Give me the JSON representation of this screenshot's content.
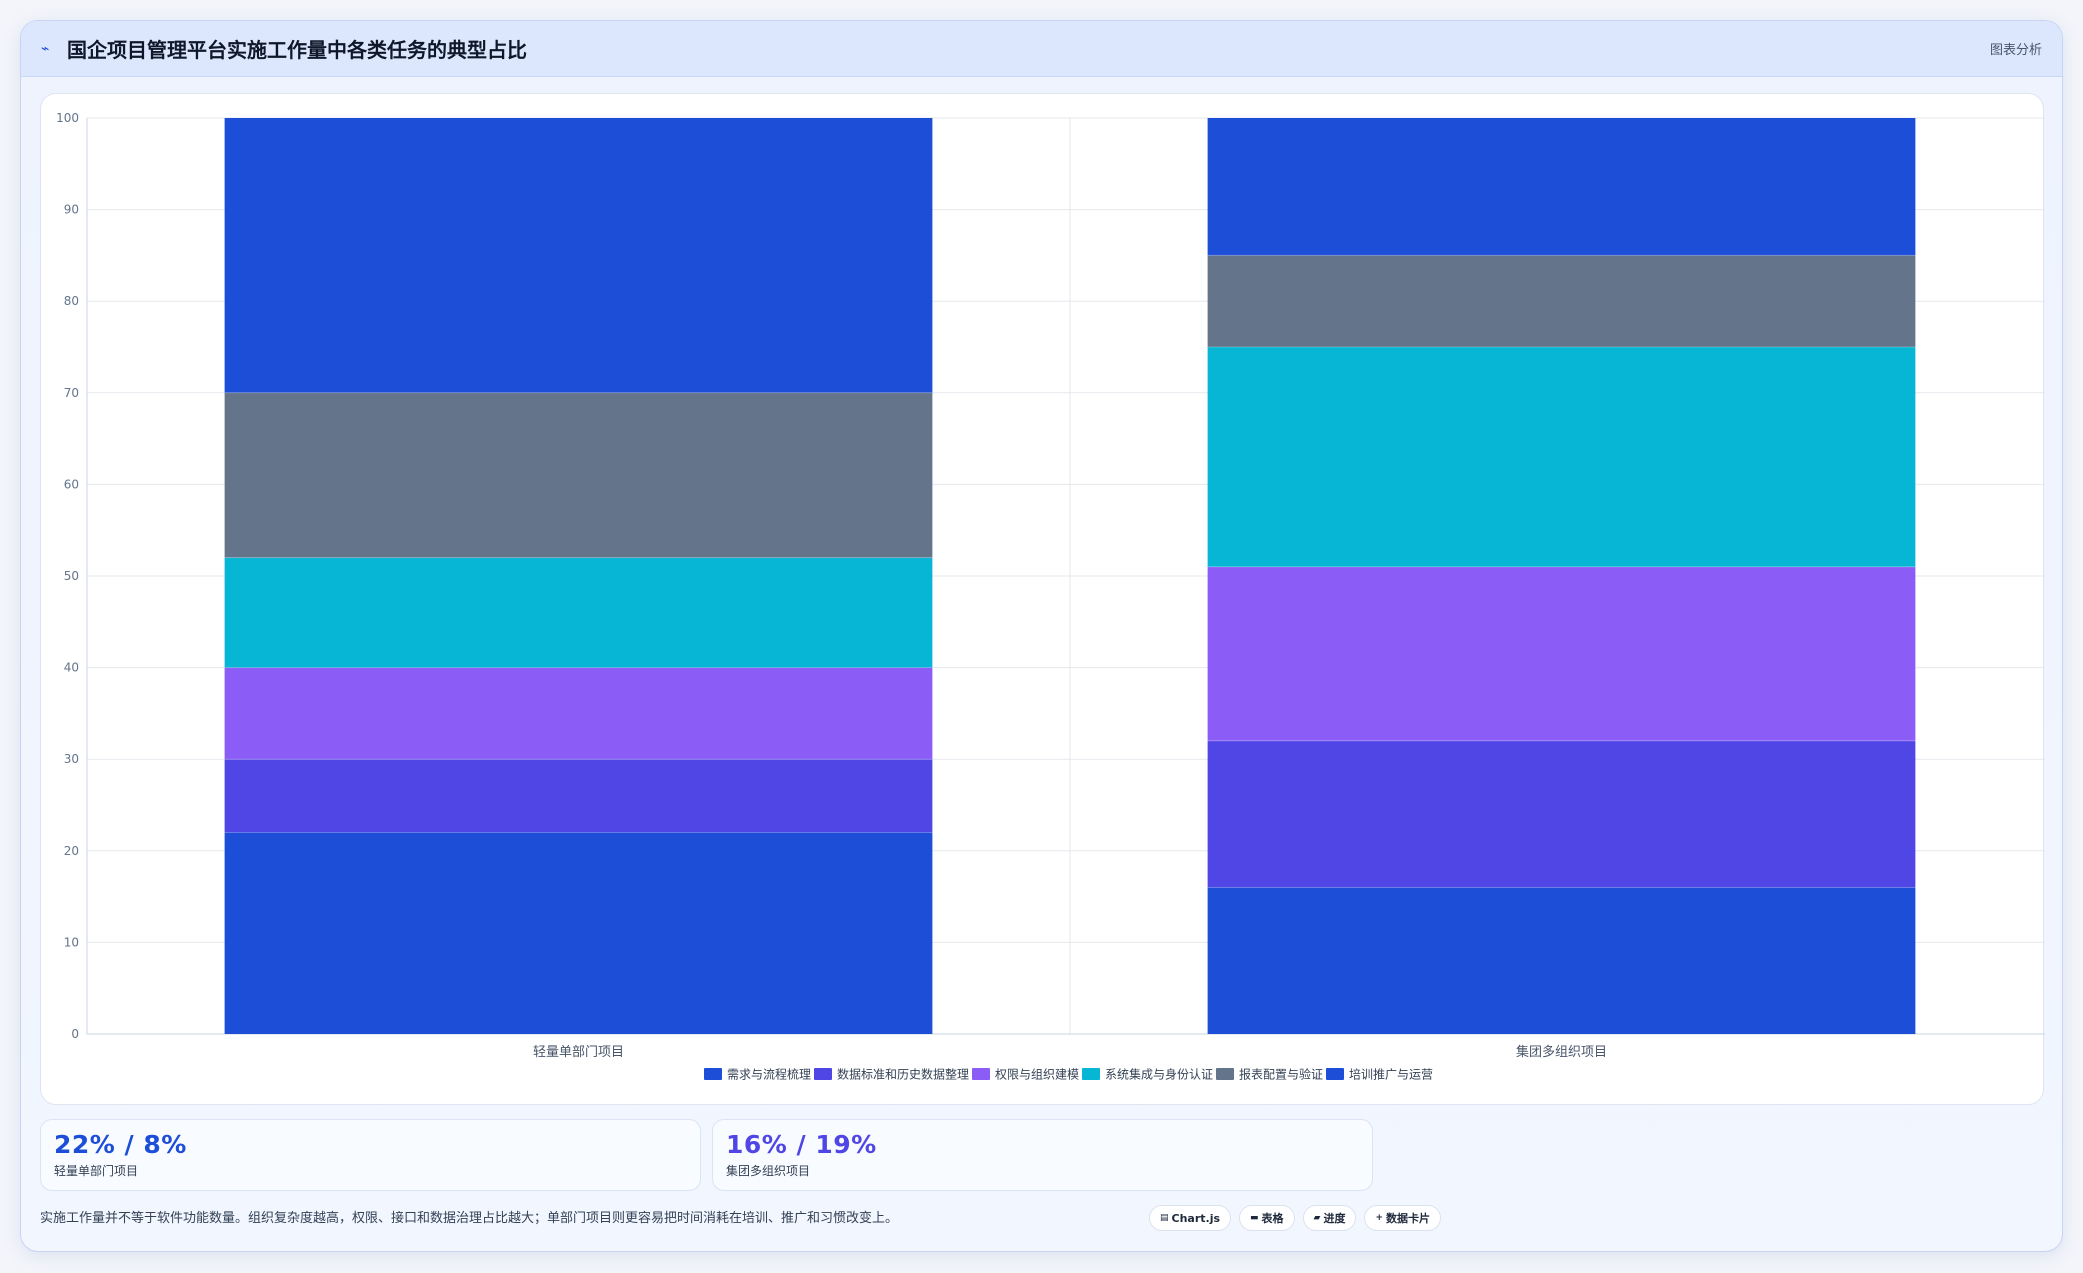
{
  "header": {
    "title": "国企项目管理平台实施工作量中各类任务的典型占比",
    "right_label": "图表分析"
  },
  "chart_data": {
    "type": "bar",
    "stacked": true,
    "categories": [
      "轻量单部门项目",
      "集团多组织项目"
    ],
    "ylim": [
      0,
      100
    ],
    "yticks": [
      0,
      10,
      20,
      30,
      40,
      50,
      60,
      70,
      80,
      90,
      100
    ],
    "grid": true,
    "legend_position": "bottom",
    "series": [
      {
        "name": "需求与流程梳理",
        "values": [
          22,
          16
        ],
        "color": "#1d4ed8"
      },
      {
        "name": "数据标准和历史数据整理",
        "values": [
          8,
          16
        ],
        "color": "#4f46e5"
      },
      {
        "name": "权限与组织建模",
        "values": [
          10,
          19
        ],
        "color": "#8b5cf6"
      },
      {
        "name": "系统集成与身份认证",
        "values": [
          12,
          24
        ],
        "color": "#06b6d4"
      },
      {
        "name": "报表配置与验证",
        "values": [
          18,
          10
        ],
        "color": "#64748b"
      },
      {
        "name": "培训推广与运营",
        "values": [
          30,
          15
        ],
        "color": "#1d4ed8"
      }
    ]
  },
  "stats": [
    {
      "value": "22% / 8%",
      "label": "轻量单部门项目",
      "color": "#1d4ed8"
    },
    {
      "value": "16% / 19%",
      "label": "集团多组织项目",
      "color": "#4f46e5"
    }
  ],
  "footnote": "实施工作量并不等于软件功能数量。组织复杂度越高，权限、接口和数据治理占比越大；单部门项目则更容易把时间消耗在培训、推广和习惯改变上。",
  "pills": [
    {
      "icon": "chart-icon",
      "label": "Chart.js"
    },
    {
      "icon": "table-icon",
      "label": "表格"
    },
    {
      "icon": "progress-icon",
      "label": "进度"
    },
    {
      "icon": "plus-icon",
      "label": "数据卡片"
    }
  ]
}
